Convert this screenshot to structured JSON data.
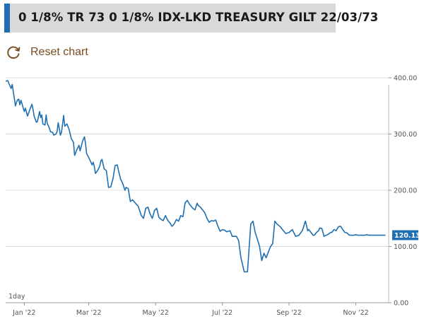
{
  "header": {
    "title": "0 1/8% TR 73 0 1/8% IDX-LKD TREASURY GILT 22/03/73"
  },
  "toolbar": {
    "reset_label": "Reset chart",
    "reset_icon": "refresh-icon"
  },
  "colors": {
    "accent": "#1f6fb2",
    "line": "#1f6fb2",
    "reset_text": "#7a4a1f",
    "grid": "#dddddd"
  },
  "chart_data": {
    "type": "line",
    "title": "",
    "xlabel": "",
    "ylabel": "",
    "interval_label": "1day",
    "ylim": [
      0,
      400
    ],
    "y_ticks": [
      0,
      100,
      200,
      300,
      400
    ],
    "y_tick_labels": [
      "0.00",
      "100.00",
      "200.00",
      "300.00",
      "400.00"
    ],
    "x_tick_labels": [
      "Jan '22",
      "Mar '22",
      "May '22",
      "Jul '22",
      "Sep '22",
      "Nov '22"
    ],
    "x_tick_positions": [
      17,
      76,
      137,
      198,
      259,
      320
    ],
    "last_value_label": "120.13",
    "series": [
      {
        "name": "0 1/8% TR 73",
        "x": [
          0,
          2,
          3,
          5,
          6,
          9,
          10,
          11,
          12,
          13,
          14,
          17,
          18,
          20,
          22,
          23,
          24,
          25,
          26,
          28,
          29,
          31,
          32,
          33,
          34,
          36,
          37,
          38,
          39,
          40,
          41,
          43,
          44,
          46,
          47,
          48,
          49,
          50,
          51,
          53,
          54,
          56,
          58,
          60,
          62,
          63,
          65,
          67,
          68,
          70,
          71,
          72,
          73,
          74,
          76,
          79,
          80,
          81,
          82,
          84,
          86,
          87,
          88,
          90,
          92,
          94,
          96,
          98,
          100,
          102,
          103,
          105,
          107,
          109,
          110,
          112,
          114,
          116,
          119,
          121,
          124,
          126,
          128,
          130,
          132,
          134,
          136,
          138,
          140,
          142,
          144,
          146,
          148,
          150,
          152,
          154,
          156,
          158,
          160,
          162,
          164,
          166,
          168,
          171,
          173,
          175,
          176,
          178,
          180,
          182,
          184,
          186,
          188,
          190,
          192,
          194,
          196,
          198,
          200,
          202,
          205,
          207,
          209,
          211,
          213,
          215,
          218,
          221,
          224,
          226,
          228,
          230,
          232,
          234,
          236,
          238,
          240,
          242,
          244,
          246,
          248,
          251,
          253,
          256,
          259,
          262,
          265,
          268,
          271,
          272,
          273,
          274,
          276,
          277,
          279,
          281,
          282,
          284,
          286,
          287,
          289,
          291,
          293,
          295,
          297,
          298,
          300,
          302,
          304,
          306,
          308,
          310,
          312,
          314,
          316,
          318,
          320,
          322,
          324,
          326,
          328,
          330,
          332,
          334,
          336,
          338,
          340,
          341,
          343,
          345,
          347
        ],
        "values": [
          394,
          395,
          390,
          381,
          388,
          350,
          357,
          361,
          362,
          352,
          360,
          340,
          346,
          332,
          343,
          348,
          353,
          344,
          332,
          321,
          322,
          340,
          329,
          334,
          318,
          316,
          334,
          319,
          315,
          310,
          304,
          303,
          298,
          300,
          304,
          320,
          310,
          298,
          303,
          333,
          314,
          318,
          308,
          292,
          285,
          262,
          272,
          280,
          270,
          285,
          291,
          295,
          283,
          265,
          258,
          245,
          250,
          243,
          230,
          235,
          243,
          252,
          255,
          238,
          235,
          205,
          206,
          220,
          244,
          245,
          236,
          220,
          212,
          200,
          205,
          203,
          180,
          183,
          176,
          172,
          155,
          150,
          168,
          170,
          158,
          150,
          164,
          168,
          152,
          148,
          146,
          155,
          147,
          142,
          136,
          140,
          148,
          145,
          155,
          153,
          178,
          182,
          175,
          168,
          165,
          177,
          173,
          170,
          165,
          160,
          150,
          143,
          146,
          145,
          147,
          136,
          127,
          130,
          129,
          126,
          128,
          118,
          118,
          118,
          110,
          80,
          55,
          55,
          140,
          145,
          125,
          113,
          100,
          75,
          88,
          80,
          90,
          100,
          105,
          145,
          140,
          135,
          130,
          123,
          125,
          130,
          118,
          120,
          128,
          133,
          140,
          145,
          128,
          130,
          125,
          120,
          120,
          125,
          128,
          133,
          132,
          118,
          120,
          122,
          125,
          125,
          130,
          128,
          135,
          136,
          130,
          125,
          124,
          120,
          120,
          120,
          121,
          120,
          120,
          120,
          120,
          121,
          120,
          120,
          120,
          120,
          120,
          120,
          120,
          120,
          120
        ]
      }
    ]
  }
}
